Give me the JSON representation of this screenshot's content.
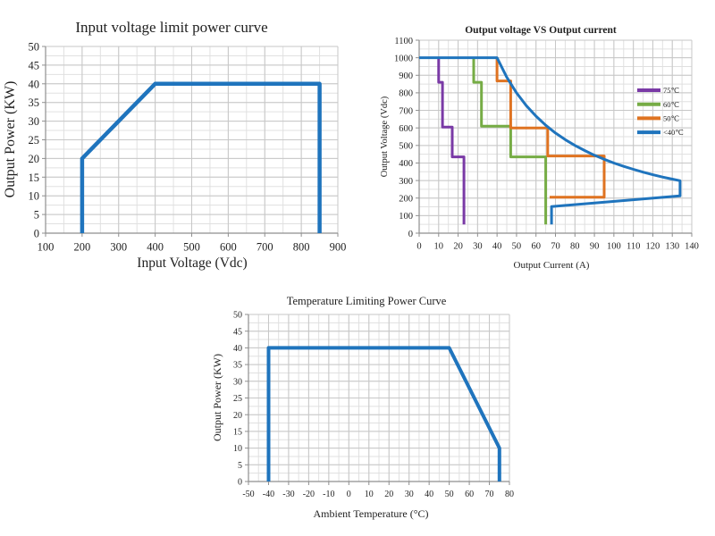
{
  "style": {
    "background": "#ffffff",
    "grid_minor": "#e0e0e0",
    "grid_major": "#c7c7c7",
    "axis_color": "#8f8f8f",
    "text_color": "#1f1f1f",
    "accent_blue": "#1f74bd"
  },
  "chart_data": [
    {
      "type": "line",
      "title": "Input voltage limit power curve",
      "xlabel": "Input Voltage (Vdc)",
      "ylabel": "Output Power (KW)",
      "xlim": [
        100,
        900
      ],
      "xtick": 100,
      "xminor": 50,
      "ylim": [
        0,
        50
      ],
      "ytick": 5,
      "yminor": 2.5,
      "grid": true,
      "legend_position": "none",
      "series": [
        {
          "name": "input-voltage-power-limit",
          "label": "",
          "color": "#1f74bd",
          "width": 4.5,
          "points": [
            [
              200,
              0
            ],
            [
              200,
              20
            ],
            [
              400,
              40
            ],
            [
              850,
              40
            ],
            [
              850,
              0
            ]
          ]
        }
      ]
    },
    {
      "type": "line",
      "title": "Output voltage VS Output current",
      "xlabel": "Output Current (A)",
      "ylabel": "Output Voltage (Vdc)",
      "xlim": [
        0,
        140
      ],
      "xtick": 10,
      "xminor": 5,
      "ylim": [
        0,
        1100
      ],
      "ytick": 100,
      "yminor": 50,
      "grid": true,
      "legend_position": "right-inside",
      "series": [
        {
          "name": "derating-75C",
          "label": "75℃",
          "color": "#7a3aa6",
          "width": 3,
          "points": [
            [
              10,
              1000
            ],
            [
              10,
              860
            ],
            [
              12,
              860
            ],
            [
              12,
              605
            ],
            [
              17,
              605
            ],
            [
              17,
              435
            ],
            [
              23,
              435
            ],
            [
              23,
              50
            ]
          ]
        },
        {
          "name": "derating-60C",
          "label": "60℃",
          "color": "#76ac45",
          "width": 3,
          "points": [
            [
              28,
              1000
            ],
            [
              28,
              860
            ],
            [
              32,
              860
            ],
            [
              32,
              610
            ],
            [
              47,
              610
            ],
            [
              47,
              435
            ],
            [
              65,
              435
            ],
            [
              65,
              50
            ]
          ]
        },
        {
          "name": "derating-50C",
          "label": "50℃",
          "color": "#df7321",
          "width": 3,
          "points": [
            [
              40,
              1000
            ],
            [
              40,
              868
            ],
            [
              47,
              868
            ],
            [
              47,
              600
            ],
            [
              66,
              600
            ],
            [
              66,
              440
            ],
            [
              95,
              440
            ],
            [
              95,
              205
            ],
            [
              67,
              205
            ]
          ]
        },
        {
          "name": "derating-below-40C",
          "label": "<40℃",
          "color": "#1f74bd",
          "width": 3,
          "points": [
            [
              0,
              1000
            ],
            [
              40,
              1000
            ],
            [
              45,
              889
            ],
            [
              50,
              800
            ],
            [
              55,
              727
            ],
            [
              60,
              667
            ],
            [
              65,
              615
            ],
            [
              70,
              571
            ],
            [
              75,
              533
            ],
            [
              80,
              500
            ],
            [
              85,
              471
            ],
            [
              90,
              444
            ],
            [
              95,
              421
            ],
            [
              100,
              400
            ],
            [
              105,
              381
            ],
            [
              110,
              364
            ],
            [
              115,
              348
            ],
            [
              120,
              333
            ],
            [
              125,
              320
            ],
            [
              130,
              308
            ],
            [
              134,
              299
            ],
            [
              134,
              213
            ],
            [
              68,
              152
            ],
            [
              68,
              50
            ]
          ]
        }
      ]
    },
    {
      "type": "line",
      "title": "Temperature Limiting Power Curve",
      "xlabel": "Ambient Temperature (°C)",
      "ylabel": "Output Power (KW)",
      "xlim": [
        -50,
        80
      ],
      "xtick": 10,
      "xminor": 5,
      "ylim": [
        0,
        50
      ],
      "ytick": 5,
      "yminor": 2.5,
      "grid": true,
      "legend_position": "none",
      "series": [
        {
          "name": "temperature-power-limit",
          "label": "",
          "color": "#1f74bd",
          "width": 4,
          "points": [
            [
              -40,
              0
            ],
            [
              -40,
              40
            ],
            [
              50,
              40
            ],
            [
              75,
              10
            ],
            [
              75,
              0
            ]
          ]
        }
      ]
    }
  ]
}
